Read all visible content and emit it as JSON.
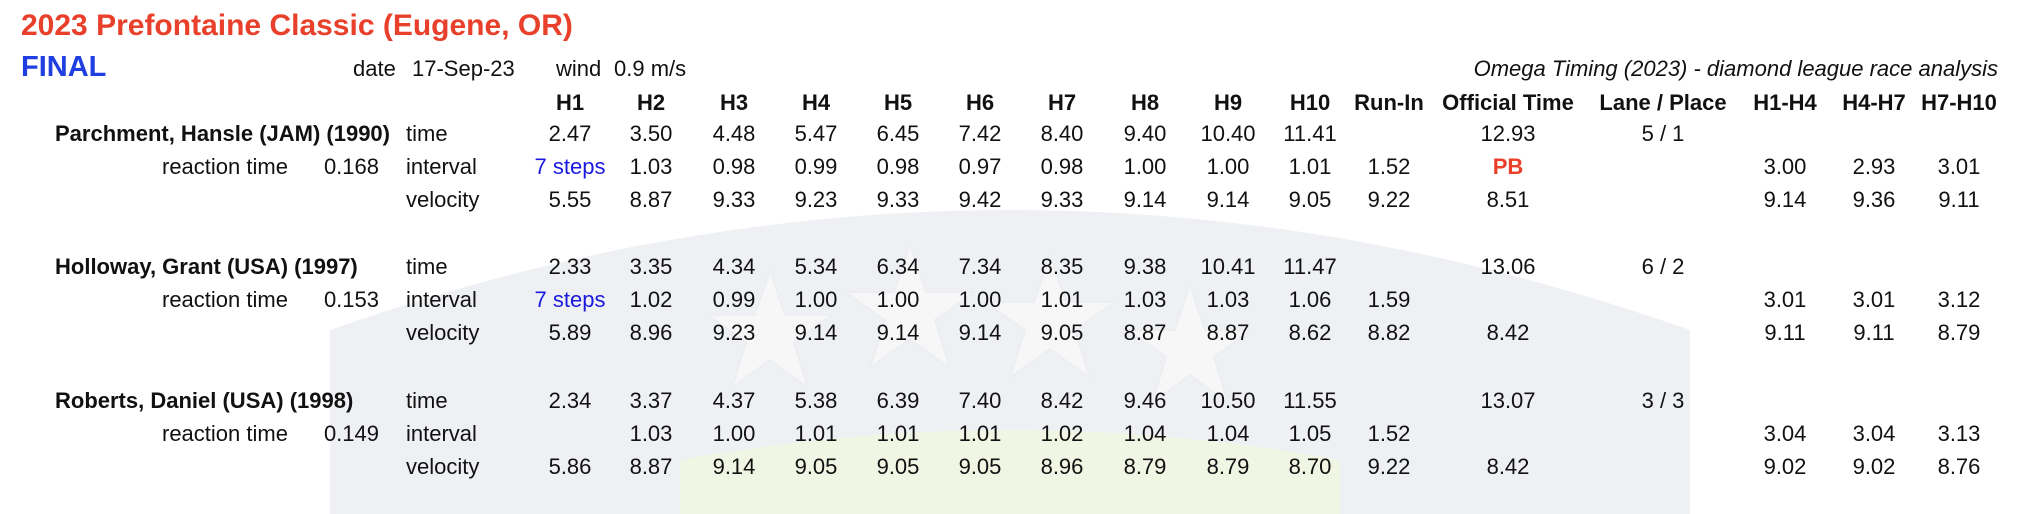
{
  "meet": {
    "title": "2023 Prefontaine Classic (Eugene, OR)",
    "round": "FINAL",
    "date_label": "date",
    "date": "17-Sep-23",
    "wind_label": "wind",
    "wind": "0.9 m/s",
    "source": "Omega Timing (2023) - diamond league race analysis"
  },
  "columns": [
    "H1",
    "H2",
    "H3",
    "H4",
    "H5",
    "H6",
    "H7",
    "H8",
    "H9",
    "H10",
    "Run-In",
    "Official Time",
    "Lane / Place",
    "H1-H4",
    "H4-H7",
    "H7-H10"
  ],
  "row_labels": {
    "reaction": "reaction time",
    "time": "time",
    "interval": "interval",
    "velocity": "velocity"
  },
  "athletes": [
    {
      "name": "Parchment, Hansle (JAM) (1990)",
      "reaction": "0.168",
      "time": [
        "2.47",
        "3.50",
        "4.48",
        "5.47",
        "6.45",
        "7.42",
        "8.40",
        "9.40",
        "10.40",
        "11.41"
      ],
      "official": "12.93",
      "lane_place": "5 / 1",
      "interval": [
        "7 steps",
        "1.03",
        "0.98",
        "0.99",
        "0.98",
        "0.97",
        "0.98",
        "1.00",
        "1.00",
        "1.01"
      ],
      "runin_interval": "1.52",
      "note": "PB",
      "interval_splits": [
        "3.00",
        "2.93",
        "3.01"
      ],
      "velocity": [
        "5.55",
        "8.87",
        "9.33",
        "9.23",
        "9.33",
        "9.42",
        "9.33",
        "9.14",
        "9.14",
        "9.05"
      ],
      "runin_velocity": "9.22",
      "official_velocity": "8.51",
      "velocity_splits": [
        "9.14",
        "9.36",
        "9.11"
      ]
    },
    {
      "name": "Holloway, Grant (USA) (1997)",
      "reaction": "0.153",
      "time": [
        "2.33",
        "3.35",
        "4.34",
        "5.34",
        "6.34",
        "7.34",
        "8.35",
        "9.38",
        "10.41",
        "11.47"
      ],
      "official": "13.06",
      "lane_place": "6 / 2",
      "interval": [
        "7 steps",
        "1.02",
        "0.99",
        "1.00",
        "1.00",
        "1.00",
        "1.01",
        "1.03",
        "1.03",
        "1.06"
      ],
      "runin_interval": "1.59",
      "note": "",
      "interval_splits": [
        "3.01",
        "3.01",
        "3.12"
      ],
      "velocity": [
        "5.89",
        "8.96",
        "9.23",
        "9.14",
        "9.14",
        "9.14",
        "9.05",
        "8.87",
        "8.87",
        "8.62"
      ],
      "runin_velocity": "8.82",
      "official_velocity": "8.42",
      "velocity_splits": [
        "9.11",
        "9.11",
        "8.79"
      ]
    },
    {
      "name": "Roberts, Daniel (USA) (1998)",
      "reaction": "0.149",
      "time": [
        "2.34",
        "3.37",
        "4.37",
        "5.38",
        "6.39",
        "7.40",
        "8.42",
        "9.46",
        "10.50",
        "11.55"
      ],
      "official": "13.07",
      "lane_place": "3 / 3",
      "interval": [
        "",
        "1.03",
        "1.00",
        "1.01",
        "1.01",
        "1.01",
        "1.02",
        "1.04",
        "1.04",
        "1.05"
      ],
      "runin_interval": "1.52",
      "note": "",
      "interval_splits": [
        "3.04",
        "3.04",
        "3.13"
      ],
      "velocity": [
        "5.86",
        "8.87",
        "9.14",
        "9.05",
        "9.05",
        "9.05",
        "8.96",
        "8.79",
        "8.79",
        "8.70"
      ],
      "runin_velocity": "9.22",
      "official_velocity": "8.42",
      "velocity_splits": [
        "9.02",
        "9.02",
        "8.76"
      ]
    }
  ]
}
